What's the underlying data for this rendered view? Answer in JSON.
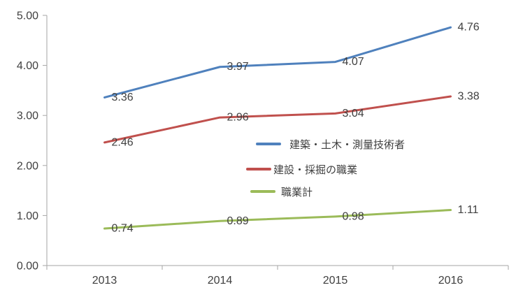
{
  "chart_data": {
    "type": "line",
    "title": "",
    "xlabel": "",
    "ylabel": "",
    "x": [
      "2013",
      "2014",
      "2015",
      "2016"
    ],
    "series": [
      {
        "name": "建築・土木・測量技術者",
        "color": "#4F81BD",
        "values": [
          3.36,
          3.97,
          4.07,
          4.76
        ],
        "labels": [
          "3.36",
          "3.97",
          "4.07",
          "4.76"
        ]
      },
      {
        "name": "建設・採掘の職業",
        "color": "#C0504D",
        "values": [
          2.46,
          2.96,
          3.04,
          3.38
        ],
        "labels": [
          "2.46",
          "2.96",
          "3.04",
          "3.38"
        ]
      },
      {
        "name": "職業計",
        "color": "#9BBB59",
        "values": [
          0.74,
          0.89,
          0.98,
          1.11
        ],
        "labels": [
          "0.74",
          "0.89",
          "0.98",
          "1.11"
        ]
      }
    ],
    "ylim": [
      0,
      5
    ],
    "yticks": [
      0,
      1,
      2,
      3,
      4,
      5
    ],
    "ytick_labels": [
      "0.00",
      "1.00",
      "2.00",
      "3.00",
      "4.00",
      "5.00"
    ],
    "grid": false,
    "legend_position": "inside-center-right",
    "colors": {
      "axis_line": "#A6A6A6",
      "tick_label": "#3f3f3f",
      "data_label": "#404040",
      "background": "#FFFFFF"
    }
  }
}
